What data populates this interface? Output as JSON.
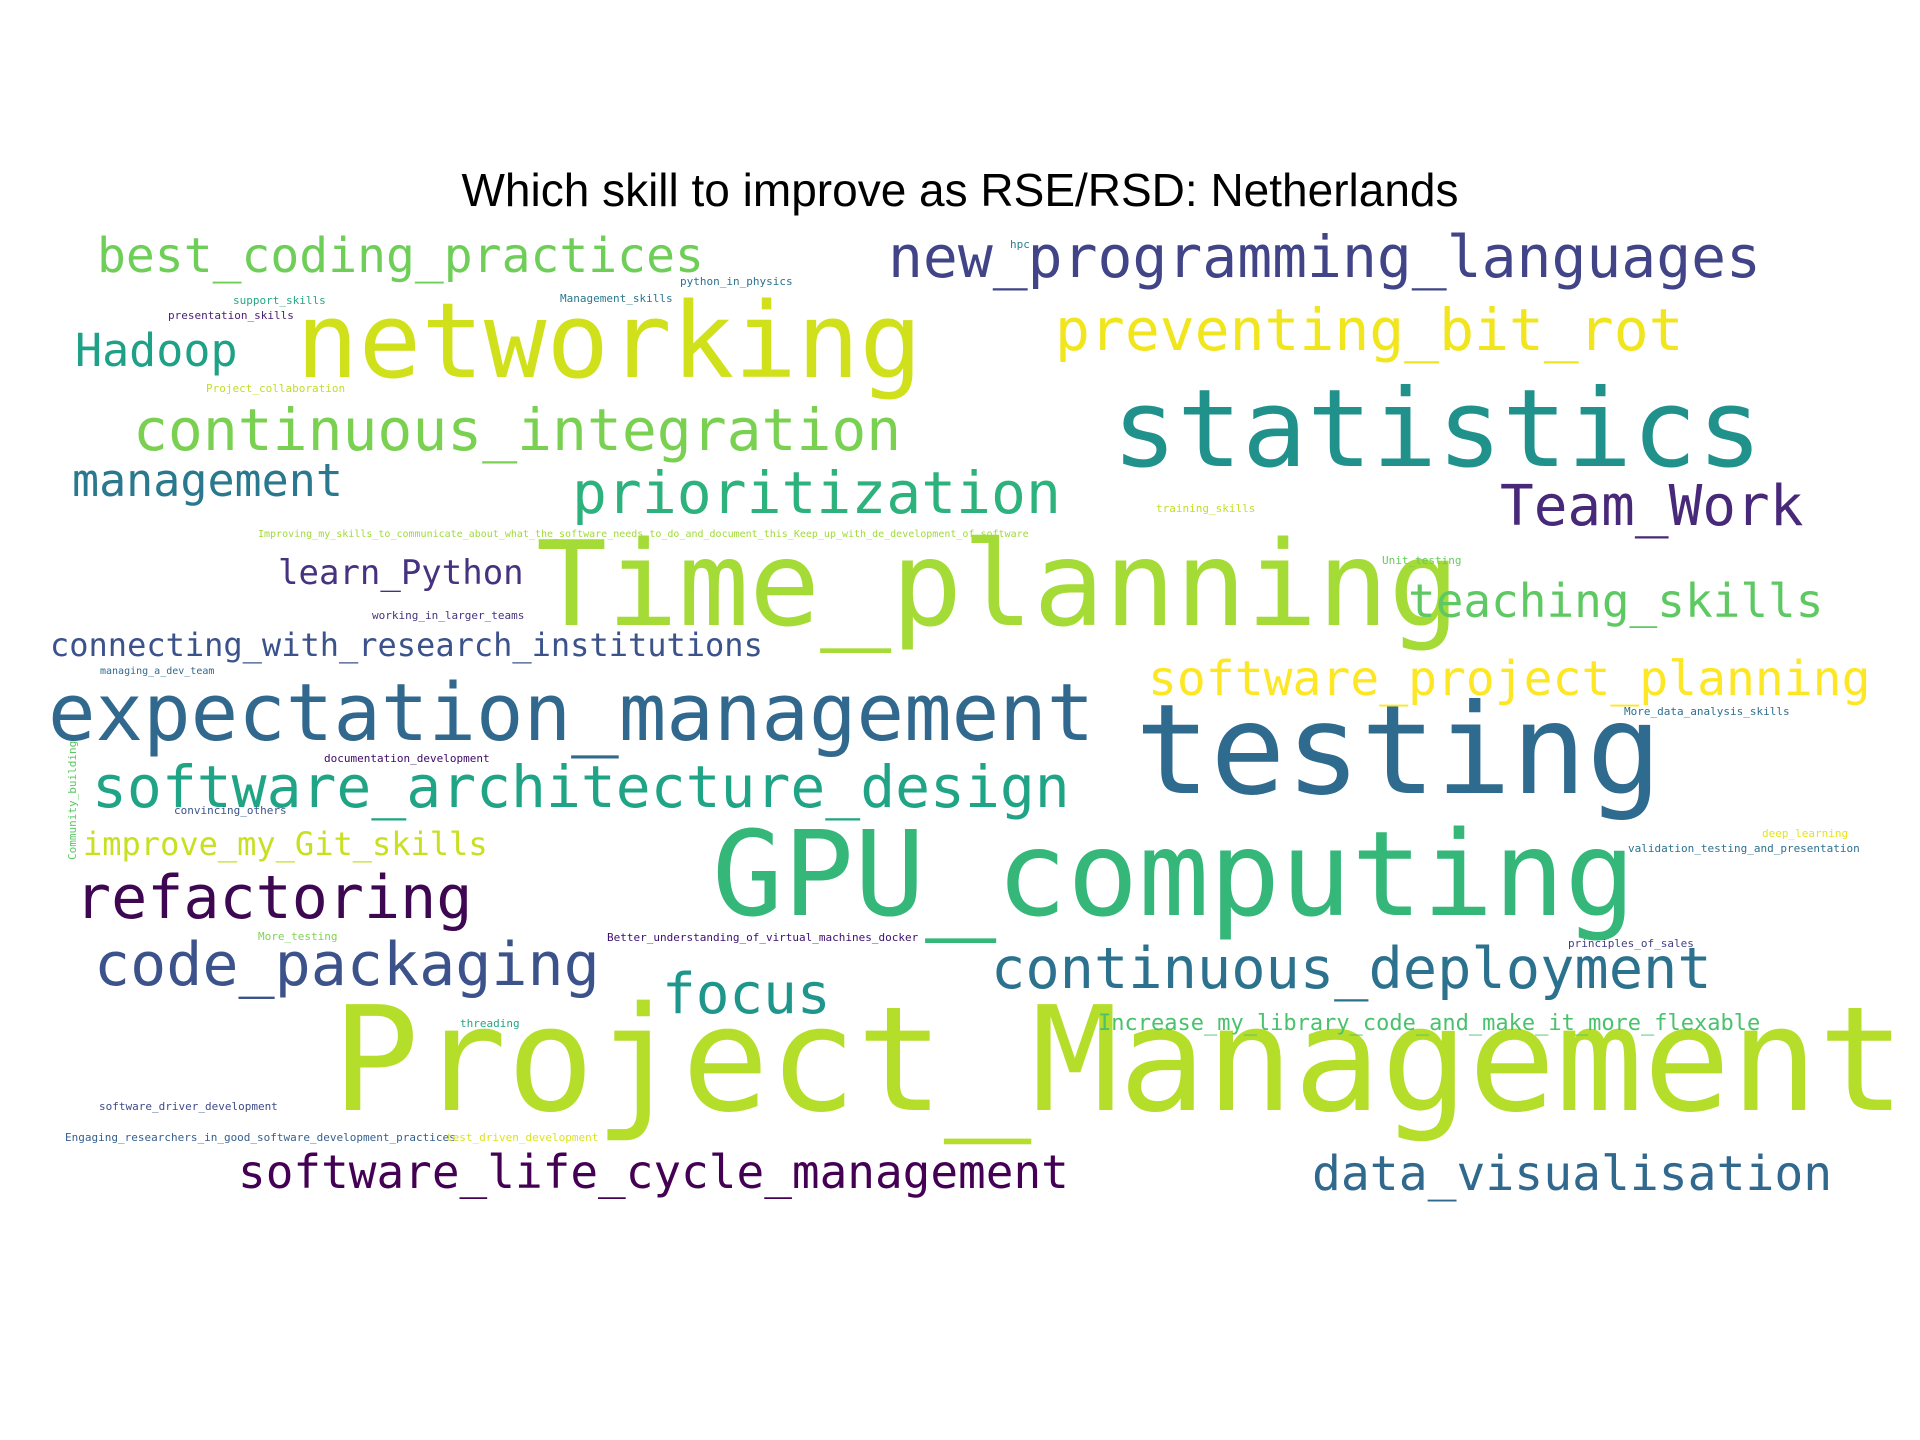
{
  "title": "Which skill to improve as RSE/RSD: Netherlands",
  "words": [
    {
      "text": "Project_Management",
      "color": "#b5de2b"
    },
    {
      "text": "GPU_computing",
      "color": "#35b779"
    },
    {
      "text": "Time_planning",
      "color": "#a5db36"
    },
    {
      "text": "testing",
      "color": "#2f6b8e"
    },
    {
      "text": "statistics",
      "color": "#21918c"
    },
    {
      "text": "networking",
      "color": "#d0e11c"
    },
    {
      "text": "expectation_management",
      "color": "#31688e"
    },
    {
      "text": "software_architecture_design",
      "color": "#20a486"
    },
    {
      "text": "new_programming_languages",
      "color": "#414487"
    },
    {
      "text": "continuous_integration",
      "color": "#7ad151"
    },
    {
      "text": "preventing_bit_rot",
      "color": "#f1e51d"
    },
    {
      "text": "prioritization",
      "color": "#2db27d"
    },
    {
      "text": "continuous_deployment",
      "color": "#2c728e"
    },
    {
      "text": "code_packaging",
      "color": "#3b528b"
    },
    {
      "text": "refactoring",
      "color": "#3e0751"
    },
    {
      "text": "software_project_planning",
      "color": "#fde725"
    },
    {
      "text": "best_coding_practices",
      "color": "#6ece58"
    },
    {
      "text": "Team_Work",
      "color": "#482878"
    },
    {
      "text": "teaching_skills",
      "color": "#5ec962"
    },
    {
      "text": "data_visualisation",
      "color": "#31688e"
    },
    {
      "text": "software_life_cycle_management",
      "color": "#440154"
    },
    {
      "text": "focus",
      "color": "#1f968b"
    },
    {
      "text": "Hadoop",
      "color": "#1fa187"
    },
    {
      "text": "management",
      "color": "#2a788e"
    },
    {
      "text": "connecting_with_research_institutions",
      "color": "#3b528b"
    },
    {
      "text": "learn_Python",
      "color": "#46327e"
    },
    {
      "text": "improve_my_Git_skills",
      "color": "#c8e020"
    },
    {
      "text": "Increase_my_library_code_and_make_it_more_flexable",
      "color": "#4ac16d"
    },
    {
      "text": "hpc",
      "color": "#26828e"
    },
    {
      "text": "python_in_physics",
      "color": "#2c728e"
    },
    {
      "text": "support_skills",
      "color": "#22a884"
    },
    {
      "text": "Management_skills",
      "color": "#2a788e"
    },
    {
      "text": "presentation_skills",
      "color": "#481f70"
    },
    {
      "text": "Project_collaboration",
      "color": "#bddf26"
    },
    {
      "text": "training_skills",
      "color": "#c0df25"
    },
    {
      "text": "Improving_my_skills_to_communicate_about_what_the_software_needs_to_do_and_document_this_Keep_up_with_de_development_of_software",
      "color": "#a0da39"
    },
    {
      "text": "Unit_testing",
      "color": "#65cb5e"
    },
    {
      "text": "working_in_larger_teams",
      "color": "#46337f"
    },
    {
      "text": "managing_a_dev_team",
      "color": "#30698e"
    },
    {
      "text": "More_data_analysis_skills",
      "color": "#2e6f8e"
    },
    {
      "text": "documentation_development",
      "color": "#3d0965"
    },
    {
      "text": "Community_building",
      "color": "#5ac864"
    },
    {
      "text": "convincing_others",
      "color": "#3a548c"
    },
    {
      "text": "deep_learning",
      "color": "#e5e419"
    },
    {
      "text": "validation_testing_and_presentation",
      "color": "#2c728e"
    },
    {
      "text": "More_testing",
      "color": "#7fd34e"
    },
    {
      "text": "Better_understanding_of_virtual_machines_docker",
      "color": "#3b0f70"
    },
    {
      "text": "principles_of_sales",
      "color": "#433e85"
    },
    {
      "text": "threading",
      "color": "#22a785"
    },
    {
      "text": "software_driver_development",
      "color": "#3e4c8a"
    },
    {
      "text": "Engaging_researchers_in_good_software_development_practices",
      "color": "#355f8d"
    },
    {
      "text": "test_driven_development",
      "color": "#dde318"
    }
  ]
}
